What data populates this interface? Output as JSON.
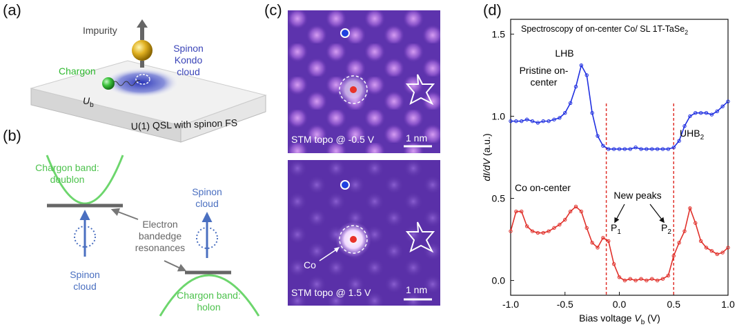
{
  "panel_labels": [
    "(a)",
    "(b)",
    "(c)",
    "(d)"
  ],
  "panel_a": {
    "impurity": "Impurity",
    "chargon": "Chargon",
    "ub": [
      "U",
      "b"
    ],
    "spinon_cloud": "Spinon Kondo cloud",
    "slab": "U(1) QSL with spinon FS"
  },
  "panel_b": {
    "doublon": "Chargon band: doublon",
    "spinon_left": "Spinon cloud",
    "resonances": "Electron bandedge resonances",
    "spinon_right": "Spinon cloud",
    "holon": "Chargon band: holon"
  },
  "panel_c": {
    "top_caption": "STM topo @ -0.5 V",
    "top_scale": "1 nm",
    "co": "Co",
    "bottom_caption": "STM topo @ 1.5 V",
    "bottom_scale": "1 nm"
  },
  "chart_data": {
    "type": "line",
    "title": [
      "Spectroscopy of on-center Co/ SL 1T-TaSe",
      "2"
    ],
    "x_label": [
      "Bias voltage ",
      "V",
      "b",
      " (V)"
    ],
    "y_label": [
      "dI/dV",
      " (a.u.)"
    ],
    "xlim": [
      -1,
      1
    ],
    "ylim": [
      -0.09,
      1.59
    ],
    "xticks": [
      {
        "value": -1,
        "label": "-1.0"
      },
      {
        "value": -0.5,
        "label": "-0.5"
      },
      {
        "value": 0,
        "label": "0.0"
      },
      {
        "value": 0.5,
        "label": "0.5"
      },
      {
        "value": 1,
        "label": "1.0"
      }
    ],
    "yticks": [
      {
        "value": 0,
        "label": "0.0"
      },
      {
        "value": 0.5,
        "label": "0.5"
      },
      {
        "value": 1,
        "label": "1.0"
      },
      {
        "value": 1.5,
        "label": "1.5"
      }
    ],
    "x": [
      -1,
      -0.95,
      -0.9,
      -0.85,
      -0.8,
      -0.75,
      -0.7,
      -0.65,
      -0.6,
      -0.55,
      -0.5,
      -0.45,
      -0.4,
      -0.35,
      -0.3,
      -0.25,
      -0.2,
      -0.15,
      -0.1,
      -0.05,
      0,
      0.05,
      0.1,
      0.15,
      0.2,
      0.25,
      0.3,
      0.35,
      0.4,
      0.45,
      0.5,
      0.55,
      0.6,
      0.65,
      0.7,
      0.75,
      0.8,
      0.85,
      0.9,
      0.95,
      1
    ],
    "series": [
      {
        "name": "Pristine on-center",
        "color": "#1f2fe0",
        "values": [
          0.97,
          0.97,
          0.97,
          0.98,
          0.97,
          0.96,
          0.97,
          0.97,
          0.98,
          0.99,
          1.02,
          1.08,
          1.18,
          1.31,
          1.25,
          1.02,
          0.88,
          0.82,
          0.8,
          0.8,
          0.8,
          0.8,
          0.8,
          0.81,
          0.8,
          0.8,
          0.8,
          0.8,
          0.8,
          0.8,
          0.81,
          0.85,
          0.94,
          1.0,
          1.02,
          1.02,
          1.02,
          1.01,
          1.03,
          1.06,
          1.09
        ]
      },
      {
        "name": "Co on-center",
        "color": "#e0302a",
        "values": [
          0.3,
          0.42,
          0.42,
          0.33,
          0.3,
          0.29,
          0.29,
          0.3,
          0.32,
          0.34,
          0.37,
          0.42,
          0.45,
          0.42,
          0.32,
          0.23,
          0.2,
          0.26,
          0.24,
          0.1,
          0.02,
          0.0,
          0.01,
          0.0,
          0.01,
          0.0,
          0.01,
          0.0,
          0.01,
          0.03,
          0.15,
          0.23,
          0.3,
          0.44,
          0.35,
          0.24,
          0.2,
          0.18,
          0.16,
          0.17,
          0.2
        ]
      }
    ],
    "vlines": [
      -0.12,
      0.5
    ],
    "annotations": {
      "lhb": "LHB",
      "uhb": [
        "UHB",
        "2"
      ],
      "new_peaks": "New peaks",
      "p1": [
        "P",
        "1"
      ],
      "p2": [
        "P",
        "2"
      ]
    }
  }
}
